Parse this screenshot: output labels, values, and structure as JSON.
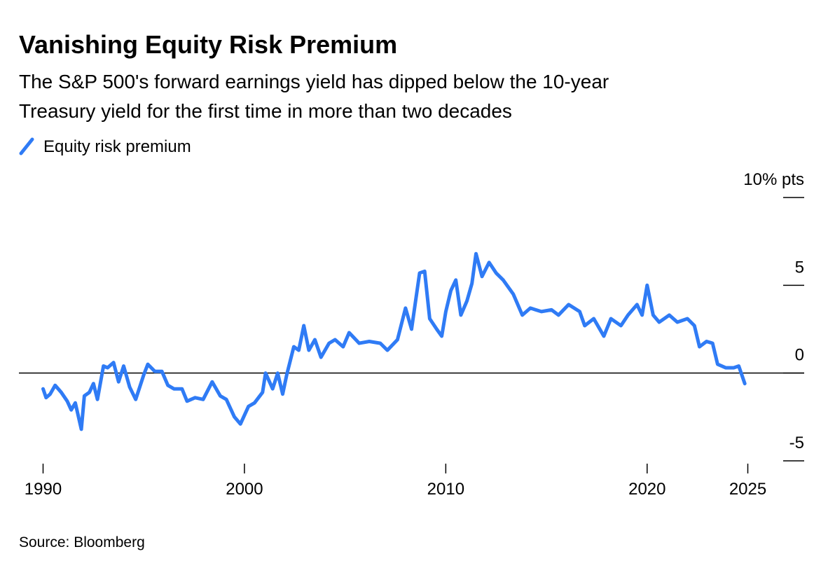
{
  "chart_data": {
    "type": "line",
    "title": "Vanishing Equity Risk Premium",
    "subtitle": [
      "The S&P 500's forward earnings yield has dipped below the 10-year",
      "Treasury yield for the first time in more than two decades"
    ],
    "source": "Source: Bloomberg",
    "x": [
      1990.0,
      1990.15,
      1990.35,
      1990.6,
      1990.9,
      1991.2,
      1991.4,
      1991.6,
      1991.9,
      1992.05,
      1992.3,
      1992.5,
      1992.7,
      1993.0,
      1993.2,
      1993.5,
      1993.75,
      1994.0,
      1994.3,
      1994.6,
      1995.0,
      1995.2,
      1995.55,
      1995.9,
      1996.2,
      1996.5,
      1996.9,
      1997.15,
      1997.55,
      1997.95,
      1998.4,
      1998.8,
      1999.1,
      1999.5,
      1999.8,
      2000.2,
      2000.5,
      2000.9,
      2001.05,
      2001.4,
      2001.65,
      2001.9,
      2002.1,
      2002.45,
      2002.7,
      2002.95,
      2003.2,
      2003.5,
      2003.8,
      2004.2,
      2004.5,
      2004.9,
      2005.2,
      2005.7,
      2006.2,
      2006.75,
      2007.1,
      2007.6,
      2008.0,
      2008.3,
      2008.7,
      2008.95,
      2009.2,
      2009.55,
      2009.8,
      2010.0,
      2010.25,
      2010.5,
      2010.75,
      2011.05,
      2011.3,
      2011.5,
      2011.8,
      2012.15,
      2012.5,
      2012.85,
      2013.35,
      2013.8,
      2014.2,
      2014.75,
      2015.25,
      2015.6,
      2016.1,
      2016.65,
      2016.9,
      2017.35,
      2017.85,
      2018.2,
      2018.7,
      2019.05,
      2019.5,
      2019.75,
      2020.0,
      2020.3,
      2020.6,
      2021.1,
      2021.5,
      2022.0,
      2022.35,
      2022.6,
      2022.95,
      2023.25,
      2023.5,
      2023.9,
      2024.3,
      2024.55,
      2024.85
    ],
    "series": [
      {
        "name": "Equity risk premium",
        "color": "#2f7bf5",
        "values": [
          -0.9,
          -1.4,
          -1.2,
          -0.7,
          -1.1,
          -1.6,
          -2.1,
          -1.7,
          -3.2,
          -1.3,
          -1.1,
          -0.6,
          -1.5,
          0.4,
          0.3,
          0.6,
          -0.5,
          0.4,
          -0.8,
          -1.5,
          -0.1,
          0.5,
          0.1,
          0.1,
          -0.7,
          -0.9,
          -0.9,
          -1.6,
          -1.4,
          -1.5,
          -0.5,
          -1.3,
          -1.5,
          -2.5,
          -2.9,
          -1.9,
          -1.7,
          -1.1,
          0.0,
          -0.9,
          0.0,
          -1.2,
          -0.1,
          1.5,
          1.3,
          2.7,
          1.3,
          1.9,
          0.9,
          1.7,
          1.9,
          1.5,
          2.3,
          1.7,
          1.8,
          1.7,
          1.3,
          1.9,
          3.7,
          2.5,
          5.7,
          5.8,
          3.1,
          2.5,
          2.1,
          3.5,
          4.7,
          5.3,
          3.3,
          4.1,
          5.1,
          6.8,
          5.5,
          6.3,
          5.7,
          5.3,
          4.5,
          3.3,
          3.7,
          3.5,
          3.6,
          3.3,
          3.9,
          3.5,
          2.7,
          3.1,
          2.1,
          3.1,
          2.7,
          3.3,
          3.9,
          3.3,
          5.0,
          3.3,
          2.9,
          3.3,
          2.9,
          3.1,
          2.7,
          1.5,
          1.8,
          1.7,
          0.5,
          0.3,
          0.3,
          0.4,
          -0.6
        ]
      }
    ],
    "xlim": [
      1988.8,
      2027.8
    ],
    "xticks": [
      1990,
      2000,
      2010,
      2020,
      2025
    ],
    "ylim": [
      -5,
      10
    ],
    "yticks": [
      -5,
      0,
      5,
      {
        "value": 10,
        "label": "10% pts"
      }
    ]
  }
}
